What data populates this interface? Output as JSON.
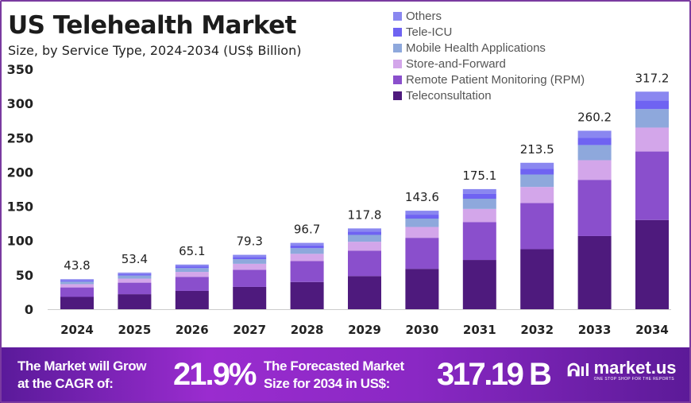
{
  "chart_data": {
    "type": "bar",
    "stacked": true,
    "title": "US Telehealth Market",
    "subtitle": "Size, by Service Type, 2024-2034 (US$ Billion)",
    "categories": [
      "2024",
      "2025",
      "2026",
      "2027",
      "2028",
      "2029",
      "2030",
      "2031",
      "2032",
      "2033",
      "2034"
    ],
    "totals": [
      43.8,
      53.4,
      65.1,
      79.3,
      96.7,
      117.8,
      143.6,
      175.1,
      213.5,
      260.2,
      317.2
    ],
    "total_labels": [
      "43.8",
      "53.4",
      "65.1",
      "79.3",
      "96.7",
      "117.8",
      "143.6",
      "175.1",
      "213.5",
      "260.2",
      "317.2"
    ],
    "series": [
      {
        "name": "Teleconsultation",
        "share": 0.41,
        "color": "#4e1a7d"
      },
      {
        "name": "Remote Patient Monitoring (RPM)",
        "share": 0.315,
        "color": "#8a4fcc"
      },
      {
        "name": "Store-and-Forward",
        "share": 0.11,
        "color": "#d3a6ea"
      },
      {
        "name": "Mobile Health Applications",
        "share": 0.085,
        "color": "#8ea8dc"
      },
      {
        "name": "Tele-ICU",
        "share": 0.04,
        "color": "#6f63f2"
      },
      {
        "name": "Others",
        "share": 0.04,
        "color": "#8a87f0"
      }
    ],
    "ylim": [
      0,
      350
    ],
    "yticks": [
      "0",
      "50",
      "100",
      "150",
      "200",
      "250",
      "300",
      "350"
    ],
    "grid": false,
    "legend": "top-right"
  },
  "banner": {
    "cagr_text_1": "The Market will Grow",
    "cagr_text_2": "at the CAGR of:",
    "cagr_value": "21.9%",
    "forecast_text_1": "The Forecasted Market",
    "forecast_text_2": "Size for 2034 in US$:",
    "forecast_value": "317.19 B",
    "logo_name": "market.us",
    "logo_tagline": "ONE STOP SHOP FOR THE REPORTS"
  }
}
